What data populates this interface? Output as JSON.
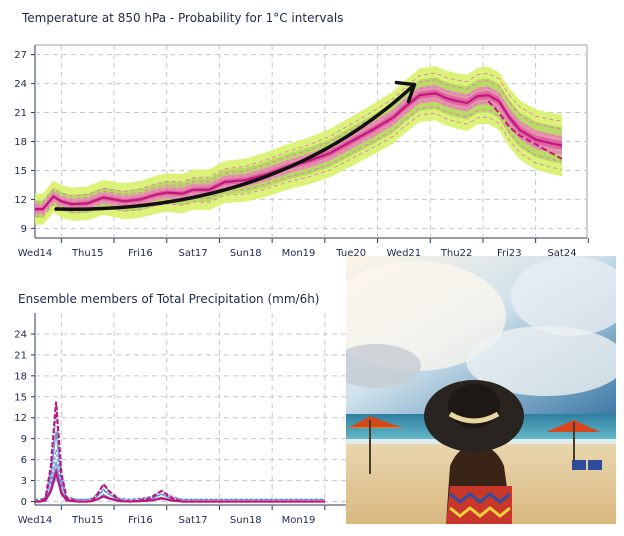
{
  "chart_data": [
    {
      "type": "line",
      "title": "Temperature at 850 hPa - Probability for 1°C intervals",
      "x_labels": [
        "Wed14",
        "Thu15",
        "Fri16",
        "Sat17",
        "Sun18",
        "Mon19",
        "Tue20",
        "Wed21",
        "Thu22",
        "Fri23",
        "Sat24"
      ],
      "highlighted_x_label": "Sun18",
      "y_ticks": [
        9,
        12,
        15,
        18,
        21,
        24,
        27
      ],
      "ylim": [
        8,
        28
      ],
      "grid": true,
      "series": [
        {
          "color": "#c0187a",
          "x": [
            0,
            0.15,
            0.35,
            0.5,
            0.7,
            1,
            1.3,
            1.5,
            1.7,
            2,
            2.3,
            2.5,
            2.8,
            3,
            3.3,
            3.6,
            4,
            4.4,
            4.8,
            5.2,
            5.6,
            6,
            6.4,
            6.8,
            7,
            7.3,
            7.6,
            7.8,
            8,
            8.2,
            8.4,
            8.6,
            8.8,
            9,
            9.2,
            9.5,
            9.8,
            10
          ],
          "values": [
            11,
            11,
            12.3,
            11.8,
            11.5,
            11.6,
            12.2,
            12,
            11.8,
            12,
            12.5,
            12.7,
            12.6,
            13,
            13,
            13.8,
            14,
            14.6,
            15.4,
            16,
            16.8,
            18,
            19.2,
            20.5,
            21.5,
            22.8,
            23,
            22.5,
            22.2,
            22,
            22.7,
            22.8,
            22.2,
            20.5,
            19.2,
            18.2,
            17.8,
            17.6
          ]
        },
        {
          "color": "#c0187a",
          "x": [
            8.6,
            8.8,
            9,
            9.2,
            9.5,
            9.8,
            10
          ],
          "values": [
            22.2,
            21,
            19.5,
            18.6,
            17.7,
            16.8,
            16.2
          ]
        }
      ],
      "annotations": [
        {
          "type": "arrow",
          "from_x": 0.4,
          "from_y": 11.0,
          "to_x": 7.2,
          "to_y": 23.9
        }
      ]
    },
    {
      "type": "line",
      "title": "Ensemble members of Total Precipitation (mm/6h)",
      "x_labels": [
        "Wed14",
        "Thu15",
        "Fri16",
        "Sat17",
        "Sun18",
        "Mon19"
      ],
      "highlighted_x_label": "Sun18",
      "y_ticks": [
        0,
        3,
        6,
        9,
        12,
        15,
        18,
        21,
        24
      ],
      "ylim": [
        -0.5,
        27
      ],
      "grid": true,
      "series": [
        {
          "color": "#c0187a",
          "x": [
            0,
            0.1,
            0.2,
            0.3,
            0.4,
            0.5,
            0.6,
            0.8,
            1,
            1.1,
            1.2,
            1.3,
            1.4,
            1.6,
            1.8,
            2,
            2.2,
            2.4,
            2.6,
            2.8,
            3,
            3.5,
            4,
            4.5,
            5,
            5.5
          ],
          "values": [
            0,
            0,
            0.5,
            5,
            14.3,
            4,
            0.5,
            0,
            0,
            0.3,
            1.2,
            2.5,
            1.5,
            0.2,
            0,
            0.2,
            0.5,
            1.5,
            0.5,
            0,
            0,
            0,
            0,
            0,
            0,
            0
          ]
        }
      ]
    }
  ]
}
